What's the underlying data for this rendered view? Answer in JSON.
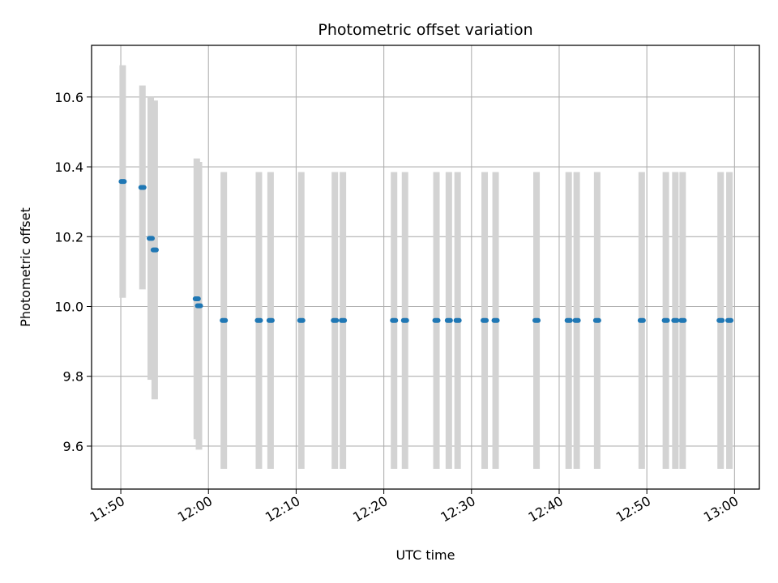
{
  "chart_data": {
    "type": "scatter",
    "title": "Photometric offset variation",
    "xlabel": "UTC time",
    "ylabel": "Photometric offset",
    "x_tick_labels": [
      "11:50",
      "12:00",
      "12:10",
      "12:20",
      "12:30",
      "12:40",
      "12:50",
      "13:00"
    ],
    "y_tick_labels": [
      "9.6",
      "9.8",
      "10.0",
      "10.2",
      "10.4",
      "10.6"
    ],
    "xlim": [
      "11:46:40",
      "13:02:50"
    ],
    "ylim": [
      9.477,
      10.748
    ],
    "grid": true,
    "marker_color": "#1f77b4",
    "errorbar_color": "#d3d3d3",
    "points": [
      {
        "t": "11:50:13",
        "y": 10.358,
        "err": 0.333
      },
      {
        "t": "11:52:28",
        "y": 10.341,
        "err": 0.292
      },
      {
        "t": "11:53:25",
        "y": 10.195,
        "err": 0.405
      },
      {
        "t": "11:53:52",
        "y": 10.162,
        "err": 0.428
      },
      {
        "t": "11:58:40",
        "y": 10.022,
        "err": 0.402
      },
      {
        "t": "11:58:55",
        "y": 10.002,
        "err": 0.412
      },
      {
        "t": "12:01:45",
        "y": 9.96,
        "err": 0.425
      },
      {
        "t": "12:05:45",
        "y": 9.96,
        "err": 0.425
      },
      {
        "t": "12:07:05",
        "y": 9.96,
        "err": 0.425
      },
      {
        "t": "12:10:35",
        "y": 9.96,
        "err": 0.425
      },
      {
        "t": "12:14:25",
        "y": 9.96,
        "err": 0.425
      },
      {
        "t": "12:15:20",
        "y": 9.96,
        "err": 0.425
      },
      {
        "t": "12:21:10",
        "y": 9.96,
        "err": 0.425
      },
      {
        "t": "12:22:25",
        "y": 9.96,
        "err": 0.425
      },
      {
        "t": "12:26:00",
        "y": 9.96,
        "err": 0.425
      },
      {
        "t": "12:27:25",
        "y": 9.96,
        "err": 0.425
      },
      {
        "t": "12:28:25",
        "y": 9.96,
        "err": 0.425
      },
      {
        "t": "12:31:30",
        "y": 9.96,
        "err": 0.425
      },
      {
        "t": "12:32:45",
        "y": 9.96,
        "err": 0.425
      },
      {
        "t": "12:37:25",
        "y": 9.96,
        "err": 0.425
      },
      {
        "t": "12:41:05",
        "y": 9.96,
        "err": 0.425
      },
      {
        "t": "12:42:00",
        "y": 9.96,
        "err": 0.425
      },
      {
        "t": "12:44:20",
        "y": 9.96,
        "err": 0.425
      },
      {
        "t": "12:49:25",
        "y": 9.96,
        "err": 0.425
      },
      {
        "t": "12:52:10",
        "y": 9.96,
        "err": 0.425
      },
      {
        "t": "12:53:15",
        "y": 9.96,
        "err": 0.425
      },
      {
        "t": "12:54:05",
        "y": 9.96,
        "err": 0.425
      },
      {
        "t": "12:58:25",
        "y": 9.96,
        "err": 0.425
      },
      {
        "t": "12:59:25",
        "y": 9.96,
        "err": 0.425
      }
    ]
  }
}
